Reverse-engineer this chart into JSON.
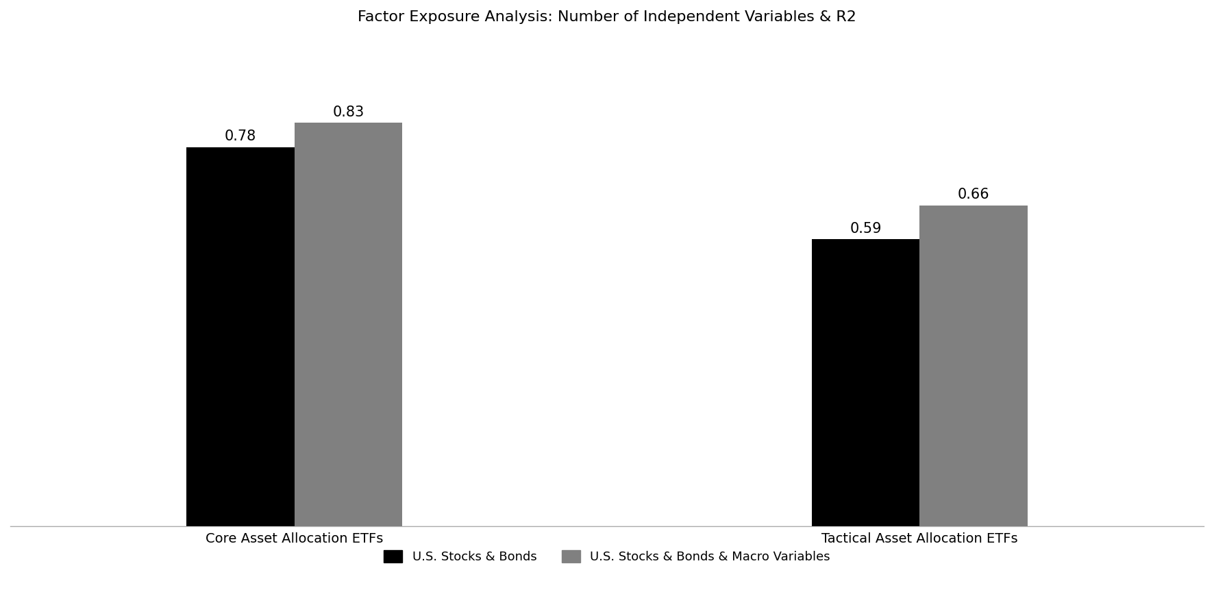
{
  "title": "Factor Exposure Analysis: Number of Independent Variables & R2",
  "categories": [
    "Core Asset Allocation ETFs",
    "Tactical Asset Allocation ETFs"
  ],
  "series": [
    {
      "label": "U.S. Stocks & Bonds",
      "color": "#000000",
      "values": [
        0.78,
        0.59
      ]
    },
    {
      "label": "U.S. Stocks & Bonds & Macro Variables",
      "color": "#808080",
      "values": [
        0.83,
        0.66
      ]
    }
  ],
  "ylim": [
    0,
    1.0
  ],
  "bar_width": 0.38,
  "group_centers": [
    1.0,
    3.2
  ],
  "annotation_fontsize": 15,
  "title_fontsize": 16,
  "tick_fontsize": 14,
  "legend_fontsize": 13,
  "background_color": "#ffffff",
  "xlim": [
    0.0,
    4.2
  ]
}
